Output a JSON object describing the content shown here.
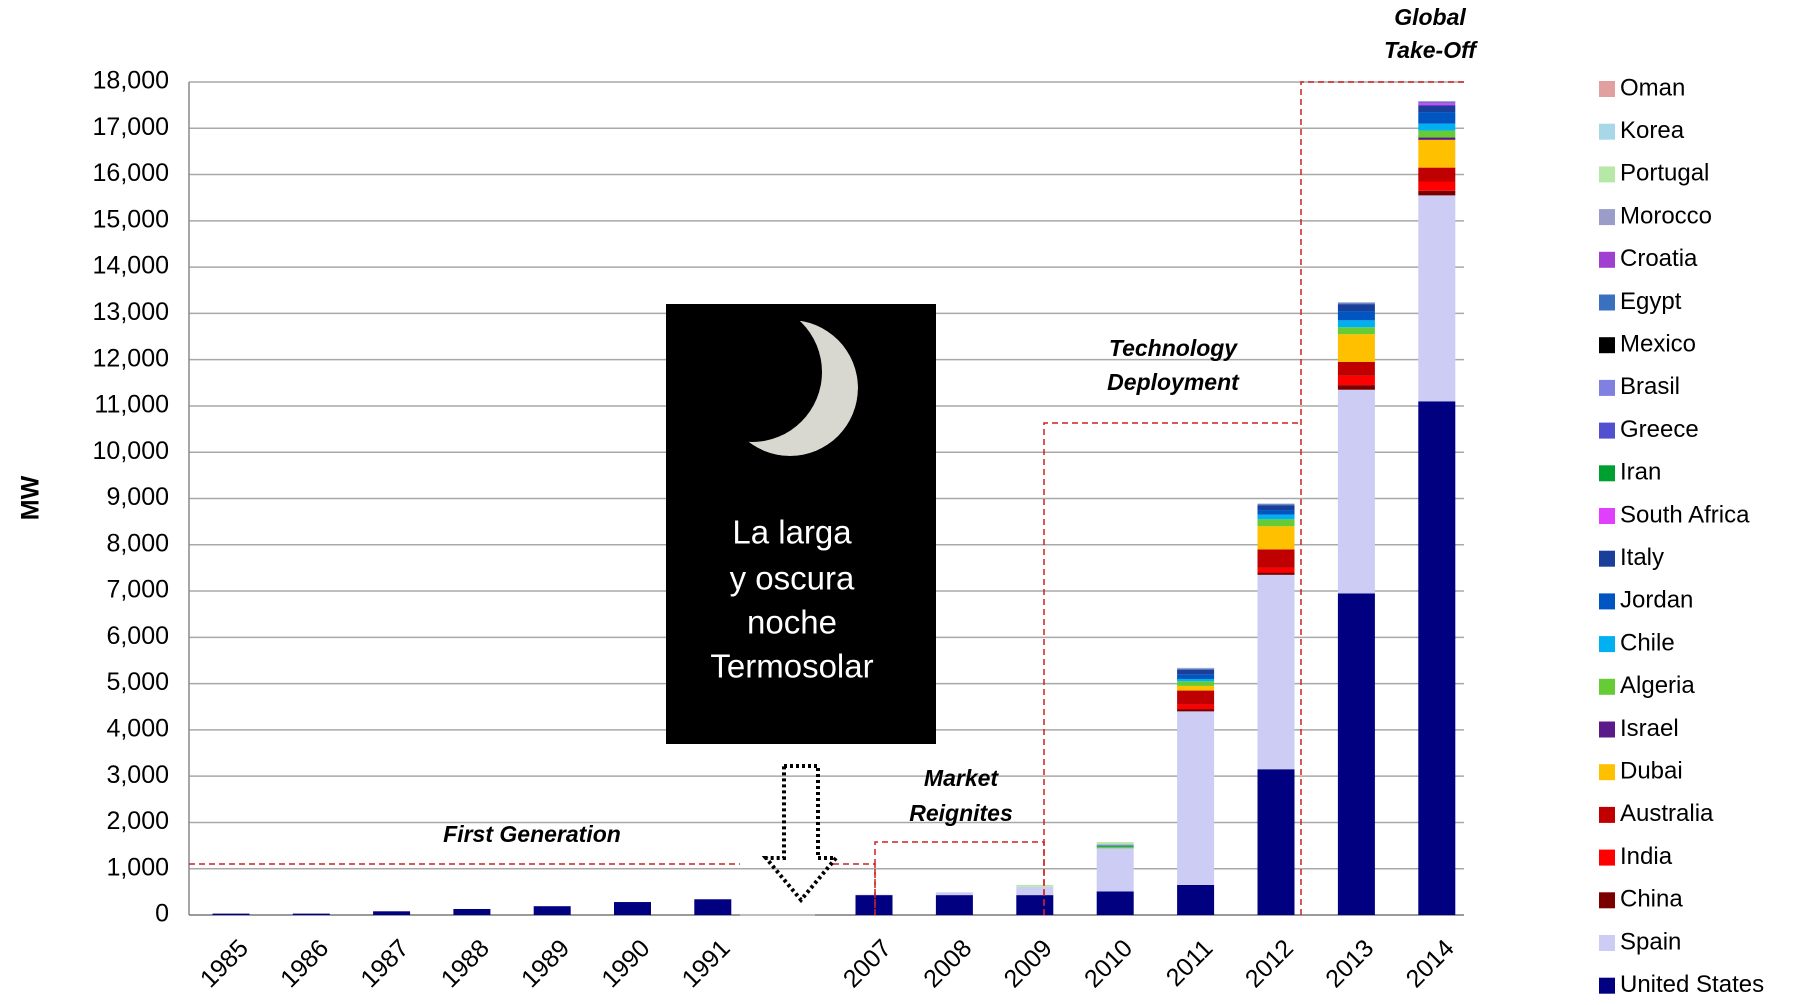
{
  "chart_data": {
    "type": "stacked_bar",
    "y_label": "MW",
    "categories": [
      "1985",
      "1986",
      "1987",
      "1988",
      "1989",
      "1990",
      "1991",
      "2007",
      "2008",
      "2009",
      "2010",
      "2011",
      "2012",
      "2013",
      "2014"
    ],
    "series": [
      {
        "name": "United States",
        "color": "#000080",
        "values": [
          30,
          30,
          80,
          130,
          190,
          280,
          340,
          430,
          430,
          430,
          510,
          650,
          3150,
          6950,
          11100
        ]
      },
      {
        "name": "Spain",
        "color": "#ccccf4",
        "values": [
          0,
          0,
          0,
          0,
          0,
          0,
          0,
          10,
          60,
          180,
          930,
          3750,
          4200,
          4400,
          4450
        ]
      },
      {
        "name": "China",
        "color": "#7a0000",
        "values": [
          0,
          0,
          0,
          0,
          0,
          0,
          0,
          0,
          0,
          0,
          0,
          50,
          50,
          100,
          100
        ]
      },
      {
        "name": "India",
        "color": "#ff0000",
        "values": [
          0,
          0,
          0,
          0,
          0,
          0,
          0,
          0,
          0,
          0,
          0,
          100,
          100,
          200,
          200
        ]
      },
      {
        "name": "Australia",
        "color": "#c00000",
        "values": [
          0,
          0,
          0,
          0,
          0,
          0,
          0,
          0,
          0,
          0,
          0,
          300,
          400,
          300,
          300
        ]
      },
      {
        "name": "Dubai",
        "color": "#ffc000",
        "values": [
          0,
          0,
          0,
          0,
          0,
          0,
          0,
          0,
          0,
          0,
          0,
          100,
          500,
          600,
          600
        ]
      },
      {
        "name": "Israel",
        "color": "#5a1a8a",
        "values": [
          0,
          0,
          0,
          0,
          0,
          0,
          0,
          0,
          0,
          0,
          0,
          0,
          0,
          0,
          50
        ]
      },
      {
        "name": "Algeria",
        "color": "#66cc33",
        "values": [
          0,
          0,
          0,
          0,
          0,
          0,
          0,
          0,
          0,
          0,
          25,
          100,
          150,
          150,
          150
        ]
      },
      {
        "name": "Chile",
        "color": "#00b0f0",
        "values": [
          0,
          0,
          0,
          0,
          0,
          0,
          0,
          0,
          0,
          0,
          0,
          50,
          100,
          150,
          150
        ]
      },
      {
        "name": "Jordan",
        "color": "#0055c0",
        "values": [
          0,
          0,
          0,
          0,
          0,
          0,
          0,
          0,
          0,
          0,
          0,
          100,
          100,
          200,
          250
        ]
      },
      {
        "name": "Italy",
        "color": "#1a3f9a",
        "values": [
          0,
          0,
          0,
          0,
          0,
          0,
          0,
          0,
          0,
          0,
          0,
          100,
          100,
          150,
          150
        ]
      },
      {
        "name": "South Africa",
        "color": "#e040fb",
        "values": [
          0,
          0,
          0,
          0,
          0,
          0,
          0,
          0,
          0,
          0,
          0,
          0,
          0,
          0,
          50
        ]
      },
      {
        "name": "Iran",
        "color": "#00a030",
        "values": [
          0,
          0,
          0,
          0,
          0,
          0,
          0,
          0,
          0,
          0,
          20,
          0,
          0,
          0,
          0
        ]
      },
      {
        "name": "Greece",
        "color": "#5050d0",
        "values": [
          0,
          0,
          0,
          0,
          0,
          0,
          0,
          0,
          0,
          0,
          0,
          0,
          0,
          0,
          0
        ]
      },
      {
        "name": "Brasil",
        "color": "#8080e0",
        "values": [
          0,
          0,
          0,
          0,
          0,
          0,
          0,
          0,
          0,
          0,
          0,
          0,
          0,
          0,
          0
        ]
      },
      {
        "name": "Mexico",
        "color": "#000000",
        "values": [
          0,
          0,
          0,
          0,
          0,
          0,
          0,
          0,
          0,
          0,
          0,
          0,
          0,
          0,
          0
        ]
      },
      {
        "name": "Egypt",
        "color": "#3a70c0",
        "values": [
          0,
          0,
          0,
          0,
          0,
          0,
          0,
          0,
          0,
          0,
          20,
          20,
          20,
          20,
          20
        ]
      },
      {
        "name": "Croatia",
        "color": "#a040d0",
        "values": [
          0,
          0,
          0,
          0,
          0,
          0,
          0,
          0,
          0,
          0,
          0,
          0,
          0,
          0,
          0
        ]
      },
      {
        "name": "Morocco",
        "color": "#9c9cc8",
        "values": [
          0,
          0,
          0,
          0,
          0,
          0,
          0,
          0,
          0,
          0,
          20,
          20,
          20,
          20,
          20
        ]
      },
      {
        "name": "Portugal",
        "color": "#b8e8a8",
        "values": [
          0,
          0,
          0,
          0,
          0,
          0,
          0,
          0,
          0,
          40,
          50,
          0,
          0,
          0,
          0
        ]
      },
      {
        "name": "Korea",
        "color": "#a8d8e8",
        "values": [
          0,
          0,
          0,
          0,
          0,
          0,
          0,
          0,
          0,
          0,
          0,
          0,
          0,
          0,
          0
        ]
      },
      {
        "name": "Oman",
        "color": "#e0a0a0",
        "values": [
          0,
          0,
          0,
          0,
          0,
          0,
          0,
          0,
          0,
          0,
          0,
          0,
          0,
          0,
          0
        ]
      }
    ],
    "ylim": [
      0,
      18000
    ],
    "yticks": [
      0,
      {
        "value": 1000,
        "label": "1,000"
      },
      {
        "value": 2000,
        "label": "2,000"
      },
      {
        "value": 3000,
        "label": "3,000"
      },
      {
        "value": 4000,
        "label": "4,000"
      },
      {
        "value": 5000,
        "label": "5,000"
      },
      {
        "value": 6000,
        "label": "6,000"
      },
      {
        "value": 7000,
        "label": "7,000"
      },
      {
        "value": 8000,
        "label": "8,000"
      },
      {
        "value": 9000,
        "label": "9,000"
      },
      {
        "value": 10000,
        "label": "10,000"
      },
      {
        "value": 11000,
        "label": "11,000"
      },
      {
        "value": 12000,
        "label": "12,000"
      },
      {
        "value": 13000,
        "label": "13,000"
      },
      {
        "value": 14000,
        "label": "14,000"
      },
      {
        "value": 15000,
        "label": "15,000"
      },
      {
        "value": 16000,
        "label": "16,000"
      },
      {
        "value": 17000,
        "label": "17,000"
      },
      {
        "value": 18000,
        "label": "18,000"
      }
    ],
    "grid": true,
    "legend": "right",
    "annotations": {
      "first_generation": "First Generation",
      "market": [
        "Market",
        "Reignites"
      ],
      "technology": [
        "Technology",
        "Deployment"
      ],
      "global": [
        "Global",
        "Take-Off"
      ],
      "night": [
        "La larga",
        "y oscura",
        "noche",
        "Termosolar"
      ]
    }
  }
}
